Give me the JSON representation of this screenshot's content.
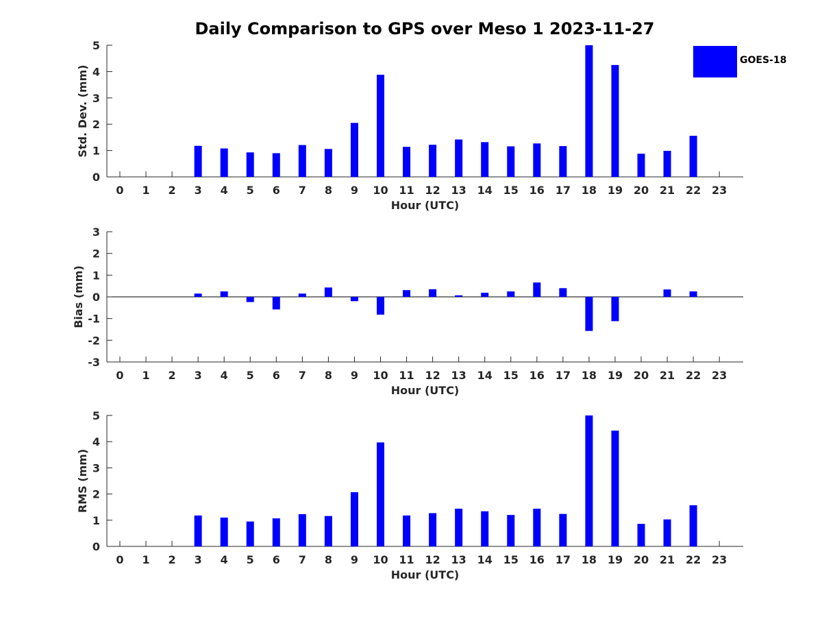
{
  "title": "Daily Comparison to GPS over Meso 1 2023-11-27",
  "legend": {
    "label": "GOES-18",
    "color": "#0000ff"
  },
  "colors": {
    "bar": "#0000ff",
    "axis": "#262626"
  },
  "chart_data": [
    {
      "type": "bar",
      "name": "std-dev",
      "categories": [
        0,
        1,
        2,
        3,
        4,
        5,
        6,
        7,
        8,
        9,
        10,
        11,
        12,
        13,
        14,
        15,
        16,
        17,
        18,
        19,
        20,
        21,
        22,
        23
      ],
      "values": [
        null,
        null,
        null,
        1.18,
        1.08,
        0.93,
        0.9,
        1.21,
        1.06,
        2.05,
        3.88,
        1.14,
        1.22,
        1.42,
        1.32,
        1.16,
        1.27,
        1.17,
        5.0,
        4.25,
        0.88,
        0.99,
        1.56,
        null
      ],
      "xlabel": "Hour (UTC)",
      "ylabel": "Std. Dev. (mm)",
      "ylim": [
        0,
        5
      ],
      "yticks": [
        0,
        1,
        2,
        3,
        4,
        5
      ],
      "xticks": [
        0,
        1,
        2,
        3,
        4,
        5,
        6,
        7,
        8,
        9,
        10,
        11,
        12,
        13,
        14,
        15,
        16,
        17,
        18,
        19,
        20,
        21,
        22,
        23
      ]
    },
    {
      "type": "bar",
      "name": "bias",
      "categories": [
        0,
        1,
        2,
        3,
        4,
        5,
        6,
        7,
        8,
        9,
        10,
        11,
        12,
        13,
        14,
        15,
        16,
        17,
        18,
        19,
        20,
        21,
        22,
        23
      ],
      "values": [
        null,
        null,
        null,
        0.15,
        0.25,
        -0.24,
        -0.58,
        0.15,
        0.43,
        -0.2,
        -0.82,
        0.31,
        0.35,
        0.07,
        0.19,
        0.25,
        0.66,
        0.4,
        -1.57,
        -1.12,
        null,
        0.34,
        0.25,
        null
      ],
      "xlabel": "Hour (UTC)",
      "ylabel": "Bias (mm)",
      "ylim": [
        -3,
        3
      ],
      "yticks": [
        -3,
        -2,
        -1,
        0,
        1,
        2,
        3
      ],
      "xticks": [
        0,
        1,
        2,
        3,
        4,
        5,
        6,
        7,
        8,
        9,
        10,
        11,
        12,
        13,
        14,
        15,
        16,
        17,
        18,
        19,
        20,
        21,
        22,
        23
      ]
    },
    {
      "type": "bar",
      "name": "rms",
      "categories": [
        0,
        1,
        2,
        3,
        4,
        5,
        6,
        7,
        8,
        9,
        10,
        11,
        12,
        13,
        14,
        15,
        16,
        17,
        18,
        19,
        20,
        21,
        22,
        23
      ],
      "values": [
        null,
        null,
        null,
        1.18,
        1.1,
        0.95,
        1.07,
        1.23,
        1.16,
        2.07,
        3.97,
        1.18,
        1.27,
        1.44,
        1.34,
        1.2,
        1.44,
        1.24,
        5.0,
        4.42,
        0.86,
        1.03,
        1.57,
        null
      ],
      "xlabel": "Hour (UTC)",
      "ylabel": "RMS (mm)",
      "ylim": [
        0,
        5
      ],
      "yticks": [
        0,
        1,
        2,
        3,
        4,
        5
      ],
      "xticks": [
        0,
        1,
        2,
        3,
        4,
        5,
        6,
        7,
        8,
        9,
        10,
        11,
        12,
        13,
        14,
        15,
        16,
        17,
        18,
        19,
        20,
        21,
        22,
        23
      ]
    }
  ]
}
